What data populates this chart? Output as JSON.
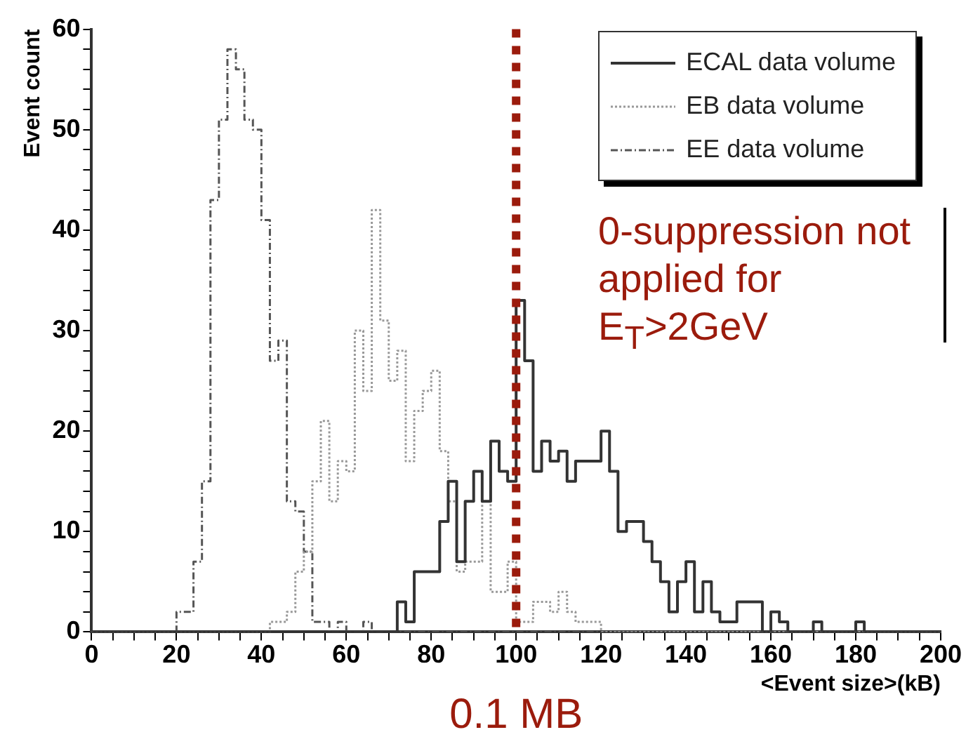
{
  "chart_data": {
    "type": "histogram",
    "xlabel": "<Event size>(kB)",
    "ylabel": "Event count",
    "bins": [
      0,
      2,
      4,
      6,
      8,
      10,
      12,
      14,
      16,
      18,
      20,
      22,
      24,
      26,
      28,
      30,
      32,
      34,
      36,
      38,
      40,
      42,
      44,
      46,
      48,
      50,
      52,
      54,
      56,
      58,
      60,
      62,
      64,
      66,
      68,
      70,
      72,
      74,
      76,
      78,
      80,
      82,
      84,
      86,
      88,
      90,
      92,
      94,
      96,
      98,
      100,
      102,
      104,
      106,
      108,
      110,
      112,
      114,
      116,
      118,
      120,
      122,
      124,
      126,
      128,
      130,
      132,
      134,
      136,
      138,
      140,
      142,
      144,
      146,
      148,
      150,
      152,
      154,
      156,
      158,
      160,
      162,
      164,
      166,
      168,
      170,
      172,
      174,
      176,
      178,
      180,
      182,
      184,
      186,
      188,
      190,
      192,
      194,
      196,
      198,
      200
    ],
    "series": [
      {
        "name": "ECAL data volume",
        "color": "#333333",
        "line_style": "solid",
        "values": [
          0,
          0,
          0,
          0,
          0,
          0,
          0,
          0,
          0,
          0,
          0,
          0,
          0,
          0,
          0,
          0,
          0,
          0,
          0,
          0,
          0,
          0,
          0,
          0,
          0,
          0,
          0,
          0,
          0,
          0,
          0,
          0,
          0,
          0,
          0,
          0,
          3,
          1,
          6,
          6,
          6,
          11,
          15,
          7,
          13,
          16,
          13,
          19,
          16,
          15,
          33,
          27,
          16,
          19,
          17,
          18,
          15,
          17,
          17,
          17,
          20,
          16,
          10,
          11,
          11,
          9,
          7,
          5,
          2,
          5,
          7,
          2,
          5,
          2,
          1,
          1,
          3,
          3,
          3,
          0,
          2,
          1,
          0,
          0,
          0,
          1,
          0,
          0,
          0,
          0,
          1,
          0,
          0,
          0,
          0,
          0,
          0,
          0,
          0,
          0
        ]
      },
      {
        "name": "EB data volume",
        "color": "#999999",
        "line_style": "dotted",
        "values": [
          0,
          0,
          0,
          0,
          0,
          0,
          0,
          0,
          0,
          0,
          0,
          0,
          0,
          0,
          0,
          0,
          0,
          0,
          0,
          0,
          0,
          1,
          1,
          2,
          6,
          8,
          15,
          21,
          13,
          17,
          16,
          30,
          24,
          42,
          31,
          25,
          28,
          17,
          22,
          24,
          26,
          18,
          13,
          6,
          7,
          7,
          13,
          4,
          4,
          7,
          1,
          1,
          3,
          3,
          2,
          4,
          2,
          1,
          1,
          1,
          0,
          0,
          0,
          0,
          0,
          0,
          0,
          0,
          0,
          0,
          0,
          0,
          0,
          0,
          0,
          0,
          0,
          0,
          0,
          0,
          0,
          0,
          0,
          0,
          0,
          0,
          0,
          0,
          0,
          0,
          0,
          0,
          0,
          0,
          0,
          0,
          0,
          0,
          0,
          0
        ]
      },
      {
        "name": "EE data volume",
        "color": "#555555",
        "line_style": "dashed",
        "values": [
          0,
          0,
          0,
          0,
          0,
          0,
          0,
          0,
          0,
          0,
          2,
          2,
          7,
          15,
          43,
          51,
          58,
          56,
          51,
          50,
          41,
          27,
          29,
          13,
          12,
          8,
          1,
          1,
          0,
          1,
          0,
          0,
          1,
          0,
          0,
          0,
          0,
          0,
          0,
          0,
          0,
          0,
          0,
          0,
          0,
          0,
          0,
          0,
          0,
          0,
          0,
          0,
          0,
          0,
          0,
          0,
          0,
          0,
          0,
          0,
          0,
          0,
          0,
          0,
          0,
          0,
          0,
          0,
          0,
          0,
          0,
          0,
          0,
          0,
          0,
          0,
          0,
          0,
          0,
          0,
          0,
          0,
          0,
          0,
          0,
          0,
          0,
          0,
          0,
          0,
          0,
          0,
          0,
          0,
          0,
          0,
          0,
          0,
          0,
          0
        ]
      }
    ],
    "xlim": [
      0,
      200
    ],
    "xticks": [
      0,
      {
        "value": 5,
        "label": null
      },
      {
        "value": 10,
        "label": null
      },
      {
        "value": 15,
        "label": null
      },
      20,
      {
        "value": 25,
        "label": null
      },
      {
        "value": 30,
        "label": null
      },
      {
        "value": 35,
        "label": null
      },
      40,
      {
        "value": 45,
        "label": null
      },
      {
        "value": 50,
        "label": null
      },
      {
        "value": 55,
        "label": null
      },
      60,
      {
        "value": 65,
        "label": null
      },
      {
        "value": 70,
        "label": null
      },
      {
        "value": 75,
        "label": null
      },
      80,
      {
        "value": 85,
        "label": null
      },
      {
        "value": 90,
        "label": null
      },
      {
        "value": 95,
        "label": null
      },
      100,
      {
        "value": 105,
        "label": null
      },
      {
        "value": 110,
        "label": null
      },
      {
        "value": 115,
        "label": null
      },
      120,
      {
        "value": 125,
        "label": null
      },
      {
        "value": 130,
        "label": null
      },
      {
        "value": 135,
        "label": null
      },
      140,
      {
        "value": 145,
        "label": null
      },
      {
        "value": 150,
        "label": null
      },
      {
        "value": 155,
        "label": null
      },
      160,
      {
        "value": 165,
        "label": null
      },
      {
        "value": 170,
        "label": null
      },
      {
        "value": 175,
        "label": null
      },
      180,
      {
        "value": 185,
        "label": null
      },
      {
        "value": 190,
        "label": null
      },
      {
        "value": 195,
        "label": null
      },
      200
    ],
    "ylim": [
      0,
      60
    ],
    "yticks": [
      0,
      {
        "value": 2,
        "label": null
      },
      {
        "value": 4,
        "label": null
      },
      {
        "value": 6,
        "label": null
      },
      {
        "value": 8,
        "label": null
      },
      10,
      {
        "value": 12,
        "label": null
      },
      {
        "value": 14,
        "label": null
      },
      {
        "value": 16,
        "label": null
      },
      {
        "value": 18,
        "label": null
      },
      20,
      {
        "value": 22,
        "label": null
      },
      {
        "value": 24,
        "label": null
      },
      {
        "value": 26,
        "label": null
      },
      {
        "value": 28,
        "label": null
      },
      30,
      {
        "value": 32,
        "label": null
      },
      {
        "value": 34,
        "label": null
      },
      {
        "value": 36,
        "label": null
      },
      {
        "value": 38,
        "label": null
      },
      40,
      {
        "value": 42,
        "label": null
      },
      {
        "value": 44,
        "label": null
      },
      {
        "value": 46,
        "label": null
      },
      {
        "value": 48,
        "label": null
      },
      50,
      {
        "value": 52,
        "label": null
      },
      {
        "value": 54,
        "label": null
      },
      {
        "value": 56,
        "label": null
      },
      {
        "value": 58,
        "label": null
      },
      60
    ],
    "ref_lines": [
      {
        "axis": "x",
        "value": 100,
        "label": "0.1 MB",
        "color": "#9b1b0c",
        "line_style": "dotted"
      }
    ],
    "annotations": [
      "0-suppression not applied for E$_{T}$>2GeV"
    ],
    "grid": false,
    "legend": "top right"
  }
}
